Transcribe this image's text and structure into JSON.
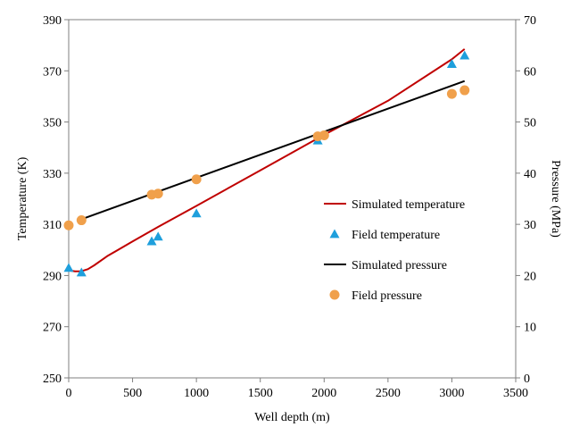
{
  "chart_data": {
    "type": "line",
    "xlabel": "Well depth (m)",
    "ylabel_left": "Temperature  (K)",
    "ylabel_right": "Pressure (MPa)",
    "xlim": [
      0,
      3500
    ],
    "ylim_left": [
      250,
      390
    ],
    "ylim_right": [
      0,
      70
    ],
    "x_ticks": [
      "0",
      "500",
      "1000",
      "1500",
      "2000",
      "2500",
      "3000",
      "3500"
    ],
    "y_left_ticks": [
      "250",
      "270",
      "290",
      "310",
      "330",
      "350",
      "370",
      "390"
    ],
    "y_right_ticks": [
      "0",
      "10",
      "20",
      "30",
      "40",
      "50",
      "60",
      "70"
    ],
    "grid": false,
    "legend_position": "right",
    "series": [
      {
        "name": "Simulated temperature",
        "kind": "line",
        "axis": "left",
        "color": "#c00000",
        "x": [
          0,
          50,
          100,
          150,
          200,
          300,
          500,
          700,
          1000,
          1500,
          2000,
          2500,
          3000,
          3100
        ],
        "y": [
          292.0,
          291.6,
          291.7,
          292.5,
          294.0,
          297.5,
          303.3,
          309.0,
          317.2,
          331.1,
          345.0,
          358.3,
          374.5,
          378.5
        ]
      },
      {
        "name": "Field temperature",
        "kind": "scatter",
        "marker": "triangle",
        "axis": "left",
        "color": "#1e9fdc",
        "x": [
          0,
          100,
          650,
          700,
          1000,
          1950,
          3000,
          3100
        ],
        "y": [
          293.0,
          291.2,
          303.4,
          305.2,
          314.3,
          342.8,
          372.7,
          376.0
        ]
      },
      {
        "name": "Simulated pressure",
        "kind": "line",
        "axis": "right",
        "color": "#000000",
        "x": [
          100,
          3100
        ],
        "y": [
          31.0,
          58.0
        ]
      },
      {
        "name": "Field pressure",
        "kind": "scatter",
        "marker": "circle",
        "axis": "right",
        "color": "#f0a04b",
        "x": [
          0,
          100,
          650,
          700,
          1000,
          1950,
          2000,
          3000,
          3100
        ],
        "y": [
          29.8,
          30.8,
          35.8,
          36.0,
          38.8,
          47.2,
          47.4,
          55.5,
          56.2
        ]
      }
    ]
  }
}
